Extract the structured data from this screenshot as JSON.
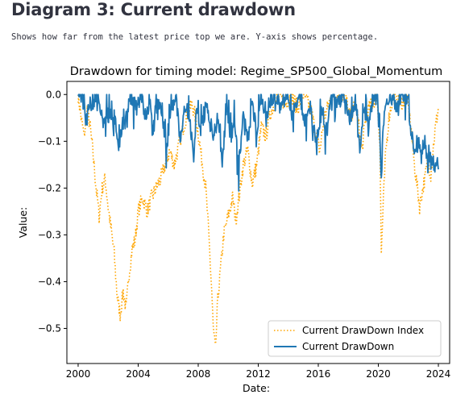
{
  "page": {
    "heading": "Diagram 3: Current drawdown",
    "description": "Shows how far from the latest price top we are. Y-axis shows percentage."
  },
  "chart_data": {
    "type": "line",
    "title": "Drawdown for timing model: Regime_SP500_Global_Momentum",
    "xlabel": "Date:",
    "ylabel": "Value:",
    "xlim": [
      1999.25,
      2024.75
    ],
    "ylim": [
      -0.575,
      0.028
    ],
    "x_ticks": [
      2000,
      2004,
      2008,
      2012,
      2016,
      2020,
      2024
    ],
    "y_ticks": [
      0.0,
      -0.1,
      -0.2,
      -0.3,
      -0.4,
      -0.5
    ],
    "y_tick_labels": [
      "0.0",
      "−0.1",
      "−0.2",
      "−0.3",
      "−0.4",
      "−0.5"
    ],
    "grid": false,
    "legend_position": "lower-right",
    "series": [
      {
        "name": "Current DrawDown Index",
        "color": "#ffa500",
        "style": "dotted",
        "points": [
          [
            2000.0,
            0.0
          ],
          [
            2000.2,
            -0.05
          ],
          [
            2000.4,
            -0.09
          ],
          [
            2000.6,
            -0.03
          ],
          [
            2000.8,
            -0.07
          ],
          [
            2001.0,
            -0.13
          ],
          [
            2001.2,
            -0.2
          ],
          [
            2001.4,
            -0.26
          ],
          [
            2001.6,
            -0.2
          ],
          [
            2001.8,
            -0.18
          ],
          [
            2002.0,
            -0.24
          ],
          [
            2002.2,
            -0.29
          ],
          [
            2002.4,
            -0.34
          ],
          [
            2002.6,
            -0.43
          ],
          [
            2002.8,
            -0.47
          ],
          [
            2003.0,
            -0.42
          ],
          [
            2003.2,
            -0.46
          ],
          [
            2003.4,
            -0.38
          ],
          [
            2003.6,
            -0.33
          ],
          [
            2003.8,
            -0.31
          ],
          [
            2004.0,
            -0.25
          ],
          [
            2004.3,
            -0.22
          ],
          [
            2004.6,
            -0.25
          ],
          [
            2004.9,
            -0.22
          ],
          [
            2005.2,
            -0.2
          ],
          [
            2005.5,
            -0.18
          ],
          [
            2005.8,
            -0.15
          ],
          [
            2006.1,
            -0.12
          ],
          [
            2006.4,
            -0.15
          ],
          [
            2006.7,
            -0.11
          ],
          [
            2007.0,
            -0.07
          ],
          [
            2007.3,
            -0.04
          ],
          [
            2007.6,
            -0.02
          ],
          [
            2007.9,
            -0.06
          ],
          [
            2008.2,
            -0.13
          ],
          [
            2008.5,
            -0.2
          ],
          [
            2008.7,
            -0.3
          ],
          [
            2008.9,
            -0.42
          ],
          [
            2009.0,
            -0.5
          ],
          [
            2009.15,
            -0.55
          ],
          [
            2009.3,
            -0.44
          ],
          [
            2009.5,
            -0.37
          ],
          [
            2009.7,
            -0.3
          ],
          [
            2010.0,
            -0.26
          ],
          [
            2010.3,
            -0.22
          ],
          [
            2010.5,
            -0.27
          ],
          [
            2010.8,
            -0.2
          ],
          [
            2011.0,
            -0.15
          ],
          [
            2011.3,
            -0.12
          ],
          [
            2011.6,
            -0.19
          ],
          [
            2011.9,
            -0.15
          ],
          [
            2012.2,
            -0.07
          ],
          [
            2012.5,
            -0.09
          ],
          [
            2012.8,
            -0.04
          ],
          [
            2013.1,
            -0.02
          ],
          [
            2013.4,
            0.0
          ],
          [
            2013.8,
            -0.02
          ],
          [
            2014.2,
            0.0
          ],
          [
            2014.6,
            -0.03
          ],
          [
            2015.0,
            0.0
          ],
          [
            2015.5,
            -0.03
          ],
          [
            2015.8,
            -0.08
          ],
          [
            2016.1,
            -0.12
          ],
          [
            2016.4,
            -0.05
          ],
          [
            2016.8,
            -0.01
          ],
          [
            2017.2,
            0.0
          ],
          [
            2017.8,
            0.0
          ],
          [
            2018.1,
            -0.05
          ],
          [
            2018.5,
            -0.02
          ],
          [
            2018.9,
            -0.12
          ],
          [
            2019.2,
            -0.04
          ],
          [
            2019.6,
            -0.02
          ],
          [
            2019.9,
            0.0
          ],
          [
            2020.1,
            -0.1
          ],
          [
            2020.2,
            -0.34
          ],
          [
            2020.35,
            -0.22
          ],
          [
            2020.5,
            -0.12
          ],
          [
            2020.7,
            -0.05
          ],
          [
            2021.0,
            0.0
          ],
          [
            2021.5,
            -0.02
          ],
          [
            2021.9,
            0.0
          ],
          [
            2022.2,
            -0.08
          ],
          [
            2022.4,
            -0.15
          ],
          [
            2022.6,
            -0.2
          ],
          [
            2022.75,
            -0.24
          ],
          [
            2022.9,
            -0.21
          ],
          [
            2023.1,
            -0.18
          ],
          [
            2023.3,
            -0.14
          ],
          [
            2023.5,
            -0.17
          ],
          [
            2023.7,
            -0.1
          ],
          [
            2023.85,
            -0.06
          ],
          [
            2024.0,
            -0.03
          ]
        ]
      },
      {
        "name": "Current DrawDown",
        "color": "#1f77b4",
        "style": "solid",
        "points": [
          [
            2000.0,
            0.0
          ],
          [
            2000.3,
            -0.01
          ],
          [
            2000.5,
            -0.05
          ],
          [
            2000.7,
            -0.03
          ],
          [
            2001.0,
            -0.02
          ],
          [
            2001.3,
            0.0
          ],
          [
            2001.6,
            -0.06
          ],
          [
            2001.9,
            -0.05
          ],
          [
            2002.2,
            -0.04
          ],
          [
            2002.5,
            -0.08
          ],
          [
            2002.7,
            -0.12
          ],
          [
            2002.9,
            -0.07
          ],
          [
            2003.2,
            -0.04
          ],
          [
            2003.5,
            0.0
          ],
          [
            2003.9,
            -0.03
          ],
          [
            2004.2,
            0.0
          ],
          [
            2004.5,
            -0.05
          ],
          [
            2004.8,
            -0.02
          ],
          [
            2005.0,
            -0.08
          ],
          [
            2005.2,
            0.0
          ],
          [
            2005.6,
            -0.04
          ],
          [
            2005.9,
            -0.12
          ],
          [
            2006.2,
            -0.03
          ],
          [
            2006.5,
            0.0
          ],
          [
            2006.8,
            -0.1
          ],
          [
            2007.1,
            -0.02
          ],
          [
            2007.4,
            -0.05
          ],
          [
            2007.7,
            -0.13
          ],
          [
            2007.9,
            -0.03
          ],
          [
            2008.2,
            -0.08
          ],
          [
            2008.5,
            -0.02
          ],
          [
            2008.8,
            -0.07
          ],
          [
            2009.1,
            -0.1
          ],
          [
            2009.3,
            -0.04
          ],
          [
            2009.6,
            -0.15
          ],
          [
            2009.9,
            -0.02
          ],
          [
            2010.2,
            -0.1
          ],
          [
            2010.4,
            -0.04
          ],
          [
            2010.7,
            -0.16
          ],
          [
            2011.0,
            -0.03
          ],
          [
            2011.3,
            -0.1
          ],
          [
            2011.6,
            -0.02
          ],
          [
            2011.9,
            -0.08
          ],
          [
            2012.2,
            0.0
          ],
          [
            2012.5,
            -0.06
          ],
          [
            2012.8,
            -0.02
          ],
          [
            2013.1,
            0.0
          ],
          [
            2013.5,
            -0.03
          ],
          [
            2013.9,
            0.0
          ],
          [
            2014.3,
            -0.04
          ],
          [
            2014.7,
            0.0
          ],
          [
            2015.1,
            -0.06
          ],
          [
            2015.5,
            -0.02
          ],
          [
            2015.9,
            -0.12
          ],
          [
            2016.2,
            -0.04
          ],
          [
            2016.5,
            -0.08
          ],
          [
            2016.9,
            0.0
          ],
          [
            2017.3,
            -0.02
          ],
          [
            2017.7,
            0.0
          ],
          [
            2018.1,
            -0.06
          ],
          [
            2018.4,
            -0.02
          ],
          [
            2018.8,
            -0.12
          ],
          [
            2019.0,
            -0.03
          ],
          [
            2019.4,
            -0.06
          ],
          [
            2019.7,
            0.0
          ],
          [
            2020.05,
            -0.04
          ],
          [
            2020.2,
            -0.19
          ],
          [
            2020.3,
            -0.08
          ],
          [
            2020.5,
            -0.02
          ],
          [
            2020.8,
            0.0
          ],
          [
            2021.2,
            -0.03
          ],
          [
            2021.6,
            0.0
          ],
          [
            2022.0,
            -0.02
          ],
          [
            2022.1,
            -0.06
          ],
          [
            2022.3,
            -0.1
          ],
          [
            2022.5,
            -0.13
          ],
          [
            2022.7,
            -0.1
          ],
          [
            2022.9,
            -0.14
          ],
          [
            2023.1,
            -0.11
          ],
          [
            2023.3,
            -0.15
          ],
          [
            2023.5,
            -0.12
          ],
          [
            2023.7,
            -0.16
          ],
          [
            2023.9,
            -0.14
          ],
          [
            2024.0,
            -0.16
          ]
        ]
      }
    ]
  }
}
